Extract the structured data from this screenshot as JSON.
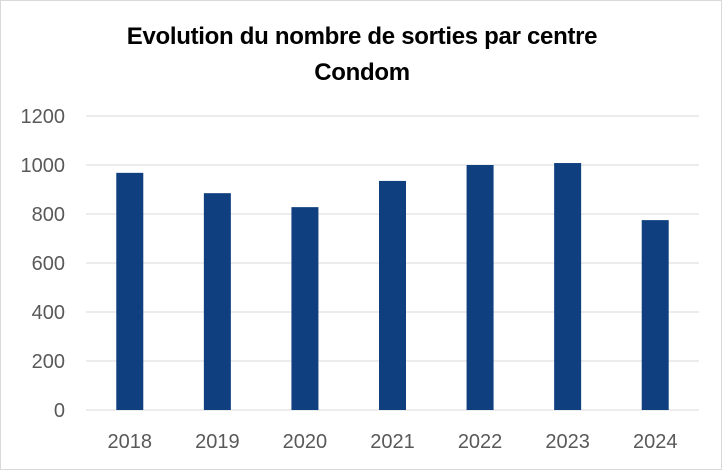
{
  "chart_data": {
    "type": "bar",
    "title_lines": [
      "Evolution du nombre de sorties par centre",
      "Condom"
    ],
    "categories": [
      "2018",
      "2019",
      "2020",
      "2021",
      "2022",
      "2023",
      "2024"
    ],
    "values": [
      968,
      885,
      828,
      935,
      1000,
      1008,
      775
    ],
    "ylim": [
      0,
      1200
    ],
    "yticks": [
      "0",
      "200",
      "400",
      "600",
      "800",
      "1000",
      "1200"
    ],
    "xlabel": "",
    "ylabel": "",
    "grid": true,
    "legend": "none",
    "bar_color": "#0f3f7f",
    "grid_color": "#d9d9d9"
  }
}
